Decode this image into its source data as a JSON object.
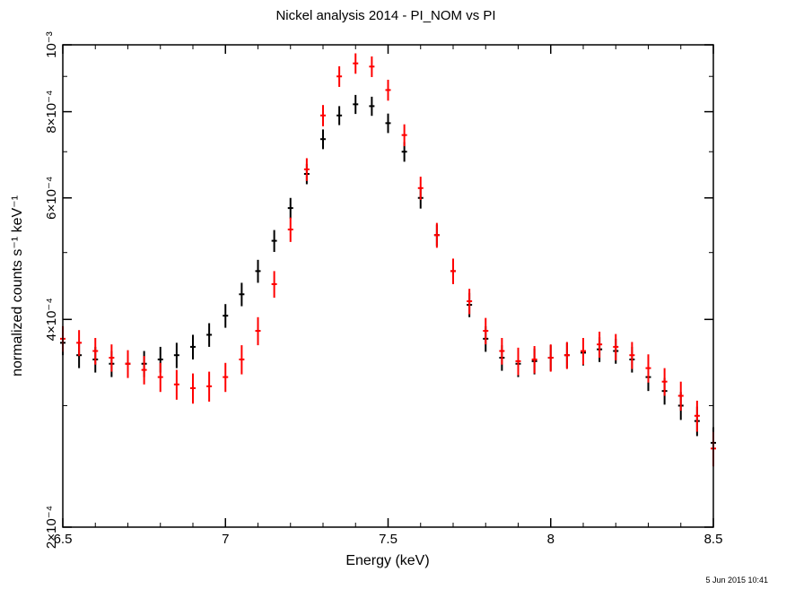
{
  "chart_data": {
    "type": "scatter",
    "title": "Nickel analysis 2014 - PI_NOM vs PI",
    "xlabel": "Energy (keV)",
    "ylabel": "normalized counts s⁻¹ keV⁻¹",
    "xlim": [
      6.5,
      8.5
    ],
    "ylim": [
      0.0002,
      0.001
    ],
    "y_scale": "log",
    "x_ticks": [
      "6.5",
      "7",
      "7.5",
      "8",
      "8.5"
    ],
    "y_ticks": [
      {
        "value": 0.0002,
        "label": "2×10⁻⁴"
      },
      {
        "value": 0.0004,
        "label": "4×10⁻⁴"
      },
      {
        "value": 0.0006,
        "label": "6×10⁻⁴"
      },
      {
        "value": 0.0008,
        "label": "8×10⁻⁴"
      },
      {
        "value": 0.001,
        "label": "10⁻³"
      }
    ],
    "series": [
      {
        "color": "#000000",
        "x": [
          6.5,
          6.55,
          6.6,
          6.65,
          6.7,
          6.75,
          6.8,
          6.85,
          6.9,
          6.95,
          7.0,
          7.05,
          7.1,
          7.15,
          7.2,
          7.25,
          7.3,
          7.35,
          7.4,
          7.45,
          7.5,
          7.55,
          7.6,
          7.65,
          7.7,
          7.75,
          7.8,
          7.85,
          7.9,
          7.95,
          8.0,
          8.05,
          8.1,
          8.15,
          8.2,
          8.25,
          8.3,
          8.35,
          8.4,
          8.45,
          8.5
        ],
        "y": [
          0.00037,
          0.000355,
          0.00035,
          0.000345,
          0.000345,
          0.000345,
          0.00035,
          0.000355,
          0.000365,
          0.00038,
          0.000405,
          0.000435,
          0.00047,
          0.00052,
          0.00058,
          0.00065,
          0.00073,
          0.00079,
          0.00082,
          0.000815,
          0.00077,
          0.0007,
          0.0006,
          0.00053,
          0.00047,
          0.00042,
          0.000375,
          0.000352,
          0.000345,
          0.000348,
          0.000352,
          0.000355,
          0.000358,
          0.000362,
          0.00036,
          0.00035,
          0.00033,
          0.000315,
          0.0003,
          0.000285,
          0.000265
        ],
        "yerr": [
          1.5e-05,
          1.5e-05,
          1.5e-05,
          1.5e-05,
          1.5e-05,
          1.5e-05,
          1.5e-05,
          1.5e-05,
          1.5e-05,
          1.5e-05,
          1.6e-05,
          1.7e-05,
          1.8e-05,
          1.9e-05,
          2e-05,
          2.2e-05,
          2.4e-05,
          2.5e-05,
          2.6e-05,
          2.6e-05,
          2.5e-05,
          2.3e-05,
          2.1e-05,
          1.9e-05,
          1.8e-05,
          1.7e-05,
          1.6e-05,
          1.5e-05,
          1.5e-05,
          1.5e-05,
          1.5e-05,
          1.5e-05,
          1.5e-05,
          1.5e-05,
          1.5e-05,
          1.5e-05,
          1.5e-05,
          1.4e-05,
          1.4e-05,
          1.4e-05,
          1.4e-05
        ]
      },
      {
        "color": "#ff0000",
        "x": [
          6.5,
          6.55,
          6.6,
          6.65,
          6.7,
          6.75,
          6.8,
          6.85,
          6.9,
          6.95,
          7.0,
          7.05,
          7.1,
          7.15,
          7.2,
          7.25,
          7.3,
          7.35,
          7.4,
          7.45,
          7.5,
          7.55,
          7.6,
          7.65,
          7.7,
          7.75,
          7.8,
          7.85,
          7.9,
          7.95,
          8.0,
          8.05,
          8.1,
          8.15,
          8.2,
          8.25,
          8.3,
          8.35,
          8.4,
          8.45,
          8.5
        ],
        "y": [
          0.000375,
          0.00037,
          0.00036,
          0.000352,
          0.000345,
          0.000338,
          0.00033,
          0.000322,
          0.000318,
          0.00032,
          0.00033,
          0.00035,
          0.000385,
          0.00045,
          0.00054,
          0.00066,
          0.00079,
          0.0009,
          0.00094,
          0.00093,
          0.00086,
          0.00074,
          0.00062,
          0.00053,
          0.00047,
          0.000425,
          0.000385,
          0.00036,
          0.000348,
          0.00035,
          0.000352,
          0.000355,
          0.00036,
          0.000368,
          0.000365,
          0.000355,
          0.00034,
          0.000325,
          0.00031,
          0.00029,
          0.00026
        ],
        "yerr": [
          1.6e-05,
          1.6e-05,
          1.6e-05,
          1.6e-05,
          1.6e-05,
          1.6e-05,
          1.6e-05,
          1.6e-05,
          1.6e-05,
          1.6e-05,
          1.6e-05,
          1.7e-05,
          1.8e-05,
          2e-05,
          2.2e-05,
          2.5e-05,
          2.8e-05,
          3.1e-05,
          3.2e-05,
          3.2e-05,
          3e-05,
          2.7e-05,
          2.4e-05,
          2.2e-05,
          2e-05,
          1.8e-05,
          1.7e-05,
          1.6e-05,
          1.6e-05,
          1.6e-05,
          1.6e-05,
          1.6e-05,
          1.6e-05,
          1.6e-05,
          1.6e-05,
          1.6e-05,
          1.6e-05,
          1.5e-05,
          1.5e-05,
          1.5e-05,
          1.5e-05
        ]
      }
    ]
  },
  "timestamp": "5 Jun 2015 10:41"
}
